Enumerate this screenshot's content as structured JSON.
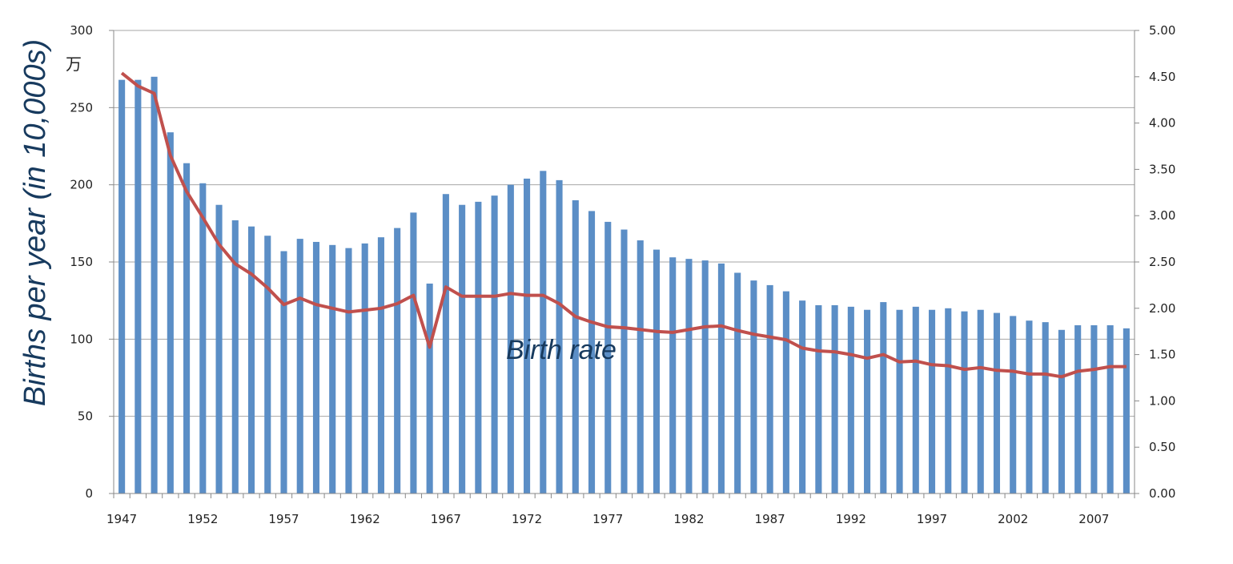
{
  "chart_data": {
    "type": "bar",
    "ylabel": "Births per year (in 10,000s)",
    "y_unit_mark": "万",
    "ylim": [
      0,
      300
    ],
    "y_ticks": [
      "0",
      "50",
      "100",
      "150",
      "200",
      "250",
      "300"
    ],
    "y2lim": [
      0,
      5
    ],
    "y2_ticks": [
      "0.00",
      "0.50",
      "1.00",
      "1.50",
      "2.00",
      "2.50",
      "3.00",
      "3.50",
      "4.00",
      "4.50",
      "5.00"
    ],
    "x_tick_labels": [
      "1947",
      "1952",
      "1957",
      "1962",
      "1967",
      "1972",
      "1977",
      "1982",
      "1987",
      "1992",
      "1997",
      "2002",
      "2007"
    ],
    "grid": true,
    "categories": [
      1947,
      1948,
      1949,
      1950,
      1951,
      1952,
      1953,
      1954,
      1955,
      1956,
      1957,
      1958,
      1959,
      1960,
      1961,
      1962,
      1963,
      1964,
      1965,
      1966,
      1967,
      1968,
      1969,
      1970,
      1971,
      1972,
      1973,
      1974,
      1975,
      1976,
      1977,
      1978,
      1979,
      1980,
      1981,
      1982,
      1983,
      1984,
      1985,
      1986,
      1987,
      1988,
      1989,
      1990,
      1991,
      1992,
      1993,
      1994,
      1995,
      1996,
      1997,
      1998,
      1999,
      2000,
      2001,
      2002,
      2003,
      2004,
      2005,
      2006,
      2007,
      2008,
      2009
    ],
    "series": [
      {
        "kind": "bar",
        "axis": "left",
        "color": "#5b8ec6",
        "values": [
          268,
          268,
          270,
          234,
          214,
          201,
          187,
          177,
          173,
          167,
          157,
          165,
          163,
          161,
          159,
          162,
          166,
          172,
          182,
          136,
          194,
          187,
          189,
          193,
          200,
          204,
          209,
          203,
          190,
          183,
          176,
          171,
          164,
          158,
          153,
          152,
          151,
          149,
          143,
          138,
          135,
          131,
          125,
          122,
          122,
          121,
          119,
          124,
          119,
          121,
          119,
          120,
          118,
          119,
          117,
          115,
          112,
          111,
          106,
          109,
          109,
          109,
          107
        ]
      },
      {
        "kind": "line",
        "axis": "right",
        "name": "Birth rate",
        "color": "#c0504d",
        "values": [
          4.54,
          4.4,
          4.32,
          3.65,
          3.26,
          2.98,
          2.69,
          2.48,
          2.37,
          2.22,
          2.04,
          2.11,
          2.04,
          2.0,
          1.96,
          1.98,
          2.0,
          2.05,
          2.14,
          1.58,
          2.23,
          2.13,
          2.13,
          2.13,
          2.16,
          2.14,
          2.14,
          2.05,
          1.91,
          1.85,
          1.8,
          1.79,
          1.77,
          1.75,
          1.74,
          1.77,
          1.8,
          1.81,
          1.76,
          1.72,
          1.69,
          1.66,
          1.57,
          1.54,
          1.53,
          1.5,
          1.46,
          1.5,
          1.42,
          1.43,
          1.39,
          1.38,
          1.34,
          1.36,
          1.33,
          1.32,
          1.29,
          1.29,
          1.26,
          1.32,
          1.34,
          1.37,
          1.37
        ]
      }
    ]
  }
}
